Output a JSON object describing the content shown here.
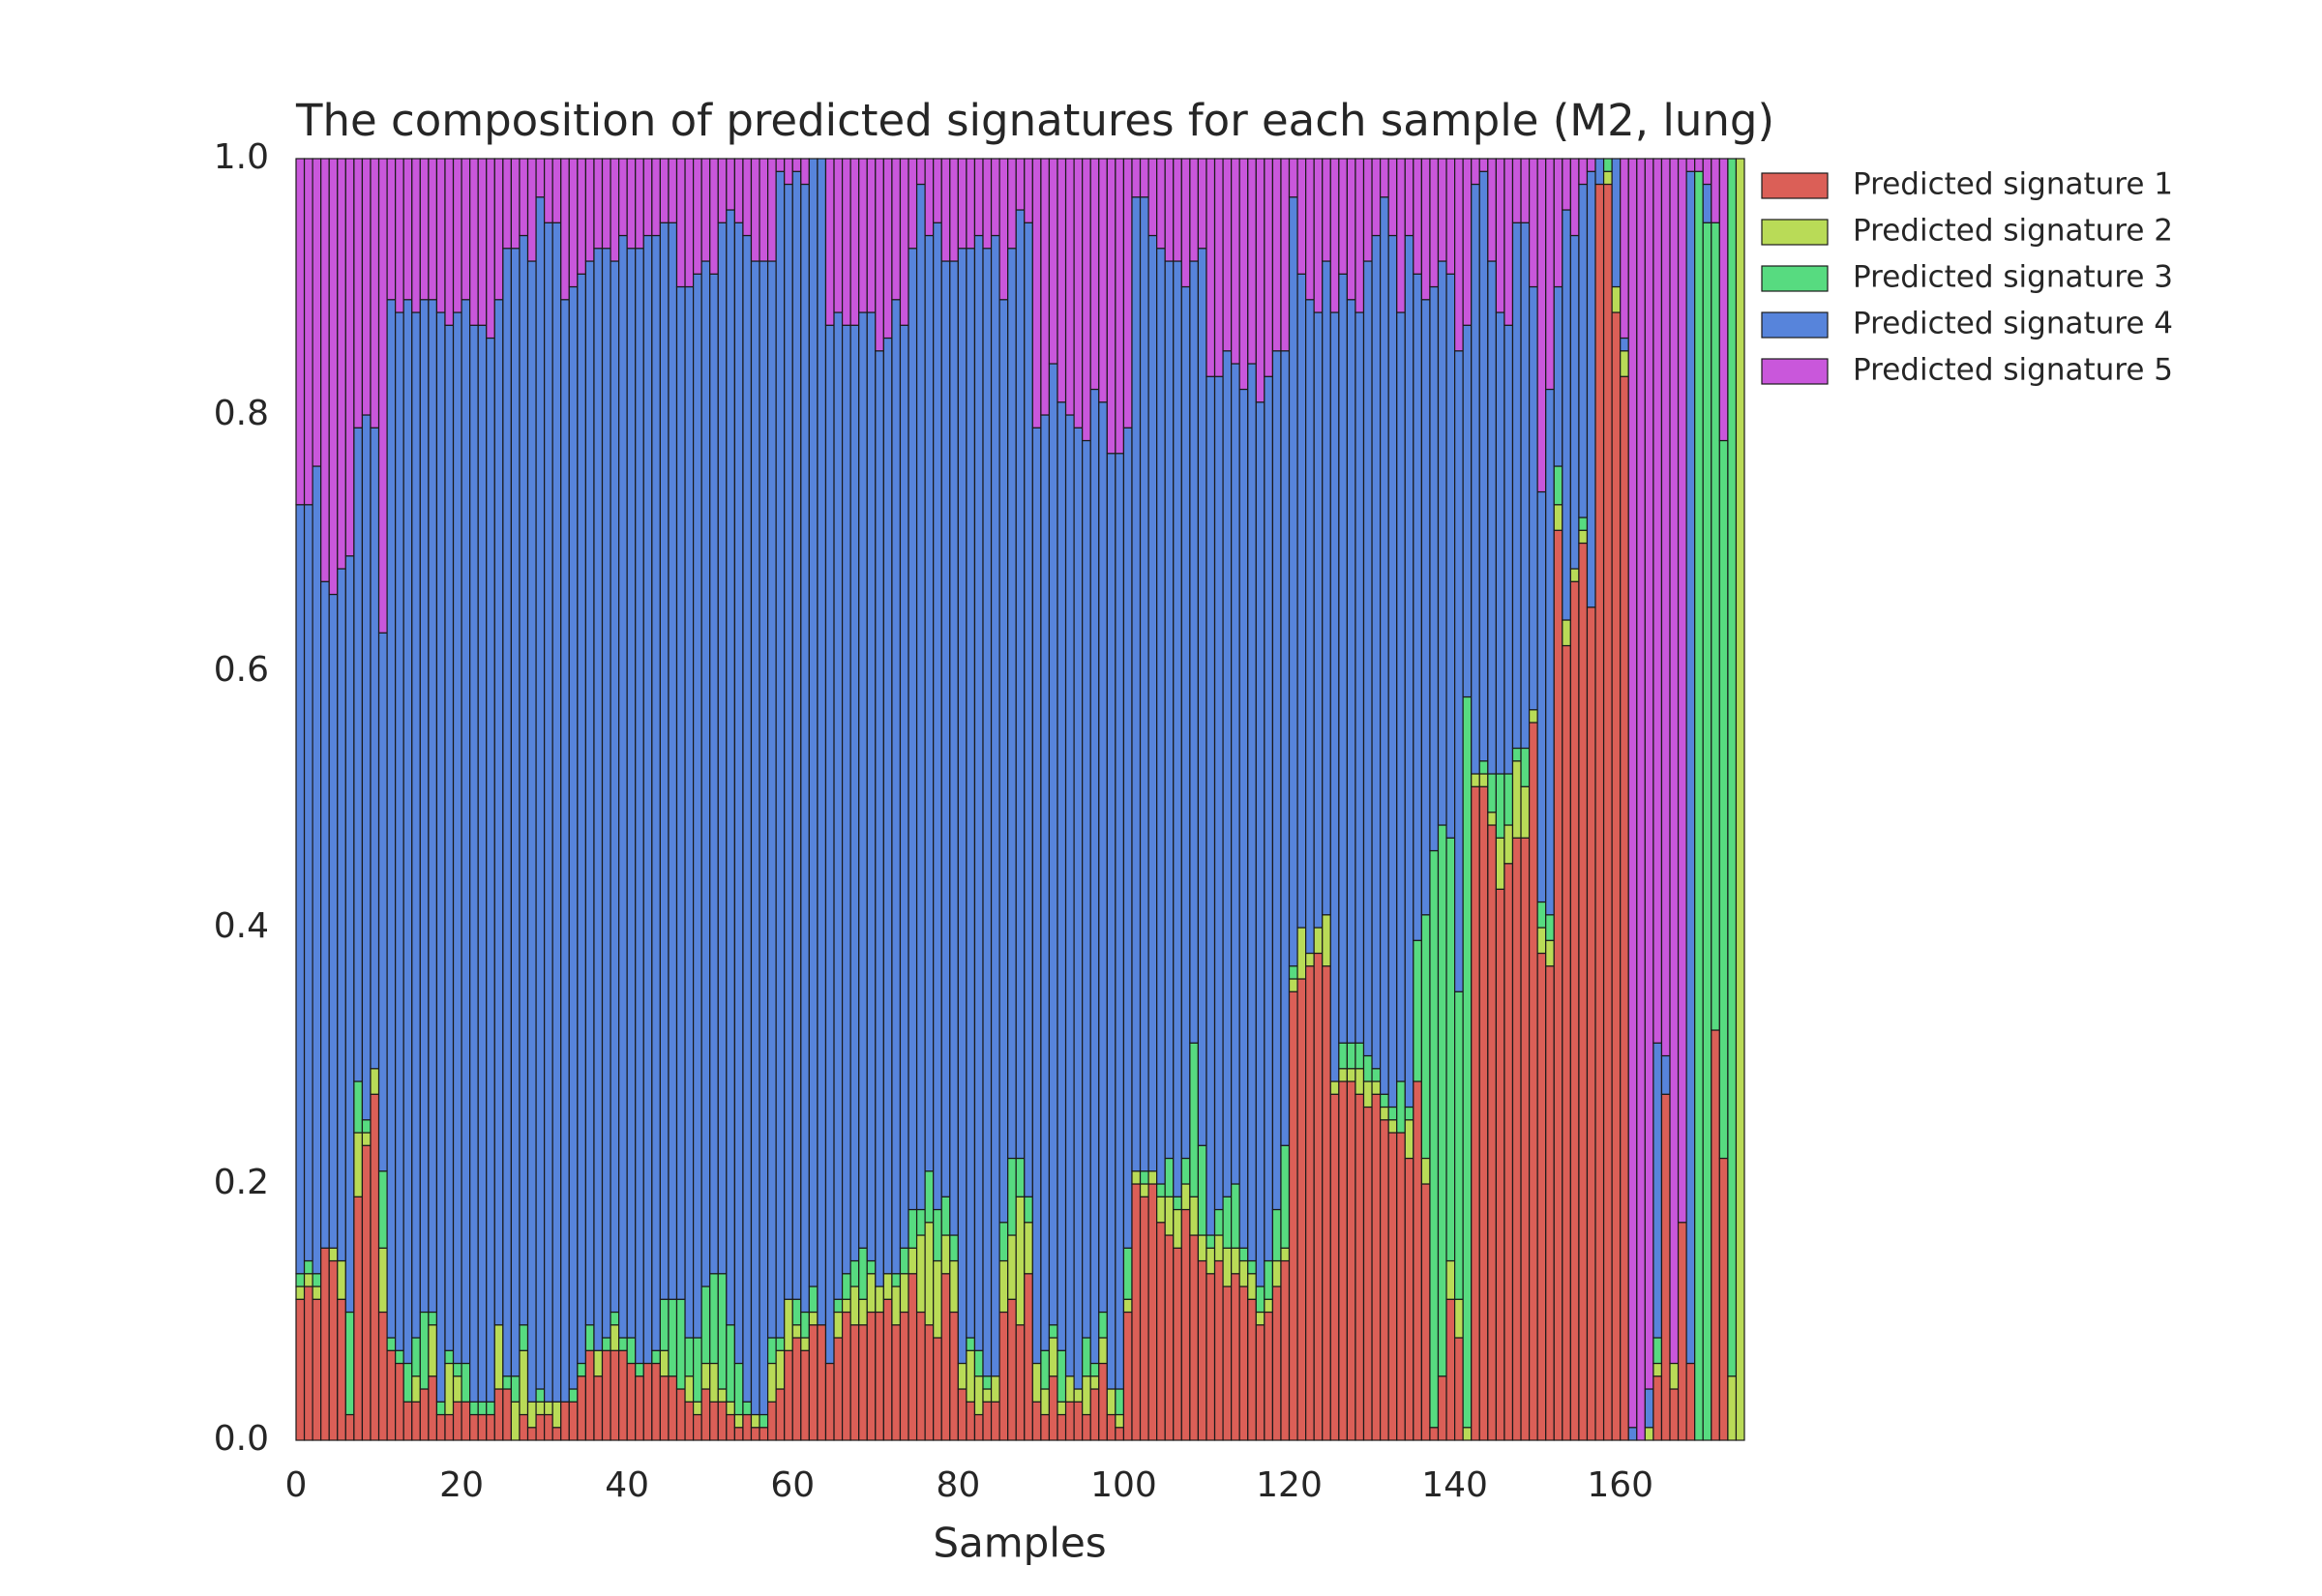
{
  "chart_data": {
    "type": "stacked_bar",
    "title": "The composition of predicted signatures for each sample (M2, lung)",
    "x_label": "Samples",
    "xlim": [
      0,
      175
    ],
    "xticks": [
      0,
      20,
      40,
      60,
      80,
      100,
      120,
      140,
      160
    ],
    "ylim": [
      0,
      1
    ],
    "yticks": [
      {
        "value": 0,
        "label": "0.0"
      },
      {
        "value": 0.2,
        "label": "0.2"
      },
      {
        "value": 0.4,
        "label": "0.4"
      },
      {
        "value": 0.6,
        "label": "0.6"
      },
      {
        "value": 0.8,
        "label": "0.8"
      },
      {
        "value": 1,
        "label": "1.0"
      }
    ],
    "grid": false,
    "legend": "outside-upper-right",
    "series": [
      {
        "name": "Predicted signature 1",
        "color": "#db5f57",
        "values": [
          0.11,
          0.12,
          0.11,
          0.15,
          0.14,
          0.11,
          0.02,
          0.19,
          0.23,
          0.27,
          0.1,
          0.07,
          0.06,
          0.03,
          0.03,
          0.04,
          0.05,
          0.02,
          0.02,
          0.03,
          0.03,
          0.02,
          0.02,
          0.02,
          0.04,
          0.04,
          0,
          0.02,
          0.01,
          0.02,
          0.02,
          0.01,
          0.03,
          0.03,
          0.05,
          0.07,
          0.05,
          0.07,
          0.07,
          0.07,
          0.06,
          0.05,
          0.06,
          0.06,
          0.05,
          0.05,
          0.04,
          0.03,
          0.02,
          0.04,
          0.03,
          0.03,
          0.02,
          0.01,
          0.02,
          0.01,
          0.01,
          0.03,
          0.04,
          0.07,
          0.08,
          0.07,
          0.09,
          0.09,
          0.06,
          0.08,
          0.1,
          0.09,
          0.09,
          0.1,
          0.1,
          0.11,
          0.09,
          0.1,
          0.13,
          0.1,
          0.09,
          0.08,
          0.13,
          0.1,
          0.04,
          0.03,
          0.02,
          0.03,
          0.03,
          0.1,
          0.11,
          0.09,
          0.13,
          0.03,
          0.02,
          0.05,
          0.02,
          0.03,
          0.03,
          0.02,
          0.04,
          0.06,
          0.02,
          0.01,
          0.1,
          0.2,
          0.19,
          0.2,
          0.17,
          0.16,
          0.15,
          0.18,
          0.16,
          0.14,
          0.13,
          0.14,
          0.12,
          0.13,
          0.12,
          0.11,
          0.09,
          0.1,
          0.12,
          0.14,
          0.35,
          0.36,
          0.37,
          0.38,
          0.37,
          0.27,
          0.28,
          0.28,
          0.27,
          0.26,
          0.27,
          0.25,
          0.24,
          0.24,
          0.22,
          0.28,
          0.2,
          0.01,
          0.05,
          0.11,
          0.08,
          0,
          0.51,
          0.51,
          0.48,
          0.43,
          0.45,
          0.47,
          0.47,
          0.56,
          0.38,
          0.37,
          0.71,
          0.62,
          0.67,
          0.7,
          0.65,
          0.98,
          0.98,
          0.88,
          0.83,
          0,
          0,
          0,
          0.05,
          0.27,
          0.04,
          0.17,
          0.06,
          0,
          0,
          0.32,
          0.22,
          0,
          0
        ]
      },
      {
        "name": "Predicted signature 2",
        "color": "#b9db57",
        "values": [
          0.01,
          0.01,
          0.01,
          0,
          0.01,
          0.03,
          0,
          0.05,
          0.01,
          0.02,
          0.05,
          0,
          0,
          0,
          0.02,
          0,
          0.04,
          0,
          0.04,
          0.02,
          0,
          0,
          0,
          0,
          0.05,
          0,
          0.03,
          0.05,
          0.02,
          0.01,
          0.01,
          0.02,
          0,
          0,
          0,
          0,
          0.02,
          0,
          0.02,
          0,
          0,
          0,
          0,
          0,
          0.02,
          0,
          0,
          0.02,
          0.01,
          0.02,
          0.03,
          0.01,
          0.01,
          0.01,
          0,
          0.01,
          0,
          0.03,
          0.03,
          0.04,
          0.01,
          0.01,
          0.01,
          0,
          0,
          0.02,
          0.01,
          0.03,
          0.02,
          0.03,
          0.02,
          0.02,
          0.03,
          0.03,
          0.02,
          0.06,
          0.08,
          0.06,
          0.03,
          0.04,
          0.02,
          0.04,
          0.03,
          0.01,
          0.02,
          0.04,
          0.05,
          0.1,
          0.04,
          0.03,
          0.02,
          0.03,
          0.01,
          0.02,
          0.01,
          0.03,
          0.01,
          0.02,
          0.02,
          0.01,
          0.01,
          0.01,
          0.01,
          0.01,
          0.02,
          0.03,
          0.03,
          0.02,
          0.03,
          0.02,
          0.02,
          0.02,
          0.03,
          0.02,
          0.02,
          0.02,
          0.01,
          0.01,
          0.02,
          0.01,
          0.01,
          0.04,
          0.01,
          0.02,
          0.04,
          0.01,
          0.01,
          0.01,
          0.02,
          0.02,
          0.01,
          0.01,
          0.01,
          0,
          0.03,
          0,
          0.02,
          0,
          0,
          0.03,
          0.03,
          0.01,
          0.01,
          0.01,
          0.01,
          0.04,
          0.03,
          0.06,
          0.04,
          0.01,
          0.02,
          0.02,
          0.02,
          0.02,
          0.01,
          0.01,
          0,
          0,
          0.01,
          0.02,
          0.02,
          0,
          0,
          0.01,
          0.01,
          0,
          0.02,
          0,
          0,
          0,
          0,
          0,
          0,
          0.05,
          1
        ]
      },
      {
        "name": "Predicted signature 3",
        "color": "#57db80",
        "values": [
          0.01,
          0.01,
          0.01,
          0,
          0,
          0,
          0.08,
          0.04,
          0.01,
          0,
          0.06,
          0.01,
          0.01,
          0.03,
          0.03,
          0.06,
          0.01,
          0.01,
          0.01,
          0.01,
          0.03,
          0.01,
          0.01,
          0.01,
          0,
          0.01,
          0.02,
          0.02,
          0,
          0.01,
          0,
          0,
          0,
          0.01,
          0.01,
          0.02,
          0,
          0.01,
          0.01,
          0.01,
          0.02,
          0.01,
          0,
          0.01,
          0.04,
          0.06,
          0.07,
          0.03,
          0.05,
          0.06,
          0.07,
          0.09,
          0.06,
          0.04,
          0.01,
          0,
          0.01,
          0.02,
          0.01,
          0,
          0.02,
          0.02,
          0.02,
          0,
          0,
          0.01,
          0.02,
          0.02,
          0.04,
          0.01,
          0,
          0,
          0.01,
          0.02,
          0.03,
          0.02,
          0.04,
          0.04,
          0.03,
          0.02,
          0,
          0.01,
          0.02,
          0.01,
          0,
          0.03,
          0.06,
          0.03,
          0.02,
          0,
          0.03,
          0.01,
          0.04,
          0,
          0,
          0.03,
          0.01,
          0.02,
          0,
          0.02,
          0.04,
          0,
          0.01,
          0,
          0.01,
          0.03,
          0.01,
          0.02,
          0.12,
          0.07,
          0.01,
          0.02,
          0.04,
          0.05,
          0.01,
          0.01,
          0.02,
          0.03,
          0.04,
          0.08,
          0.01,
          0,
          0,
          0,
          0,
          0,
          0.02,
          0.02,
          0.02,
          0.02,
          0.01,
          0.01,
          0.01,
          0.04,
          0.01,
          0.11,
          0.19,
          0.45,
          0.43,
          0.33,
          0.24,
          0.57,
          0,
          0.01,
          0.03,
          0.05,
          0.04,
          0.01,
          0.03,
          0,
          0.02,
          0.02,
          0.03,
          0,
          0,
          0.01,
          0,
          0,
          0.01,
          0,
          0,
          0,
          0,
          0,
          0.02,
          0,
          0,
          0,
          0,
          0.99,
          0.95,
          0.63,
          0.56,
          0.95,
          0
        ]
      },
      {
        "name": "Predicted signature 4",
        "color": "#5784db",
        "values": [
          0.6,
          0.59,
          0.63,
          0.52,
          0.51,
          0.54,
          0.59,
          0.51,
          0.55,
          0.5,
          0.42,
          0.81,
          0.81,
          0.83,
          0.8,
          0.79,
          0.79,
          0.85,
          0.8,
          0.82,
          0.83,
          0.84,
          0.84,
          0.83,
          0.8,
          0.88,
          0.88,
          0.85,
          0.89,
          0.93,
          0.92,
          0.92,
          0.86,
          0.86,
          0.85,
          0.83,
          0.86,
          0.85,
          0.82,
          0.86,
          0.85,
          0.87,
          0.88,
          0.87,
          0.84,
          0.84,
          0.79,
          0.82,
          0.83,
          0.8,
          0.78,
          0.82,
          0.87,
          0.89,
          0.91,
          0.9,
          0.9,
          0.84,
          0.91,
          0.87,
          0.88,
          0.88,
          0.88,
          0.91,
          0.81,
          0.77,
          0.74,
          0.73,
          0.73,
          0.74,
          0.73,
          0.73,
          0.76,
          0.72,
          0.75,
          0.8,
          0.73,
          0.77,
          0.73,
          0.76,
          0.87,
          0.85,
          0.87,
          0.88,
          0.89,
          0.72,
          0.71,
          0.74,
          0.76,
          0.73,
          0.73,
          0.75,
          0.74,
          0.75,
          0.75,
          0.7,
          0.76,
          0.71,
          0.73,
          0.73,
          0.64,
          0.76,
          0.76,
          0.73,
          0.73,
          0.7,
          0.73,
          0.68,
          0.61,
          0.7,
          0.67,
          0.65,
          0.66,
          0.64,
          0.67,
          0.7,
          0.69,
          0.69,
          0.67,
          0.62,
          0.6,
          0.51,
          0.51,
          0.48,
          0.51,
          0.6,
          0.6,
          0.58,
          0.57,
          0.62,
          0.65,
          0.7,
          0.68,
          0.6,
          0.68,
          0.52,
          0.48,
          0.44,
          0.44,
          0.44,
          0.5,
          0.29,
          0.46,
          0.46,
          0.4,
          0.36,
          0.35,
          0.41,
          0.41,
          0.33,
          0.32,
          0.41,
          0.14,
          0.32,
          0.26,
          0.26,
          0.34,
          0.02,
          0,
          0.1,
          0.01,
          0.01,
          0,
          0.03,
          0.23,
          0.03,
          0,
          0,
          0.93,
          0,
          0.03,
          0,
          0,
          0,
          0
        ]
      },
      {
        "name": "Predicted signature 5",
        "color": "#c957db",
        "values": [
          0.27,
          0.27,
          0.24,
          0.33,
          0.34,
          0.32,
          0.31,
          0.21,
          0.2,
          0.21,
          0.37,
          0.11,
          0.12,
          0.11,
          0.12,
          0.11,
          0.11,
          0.12,
          0.13,
          0.12,
          0.11,
          0.13,
          0.13,
          0.14,
          0.11,
          0.07,
          0.07,
          0.06,
          0.08,
          0.03,
          0.05,
          0.05,
          0.11,
          0.1,
          0.09,
          0.08,
          0.07,
          0.07,
          0.08,
          0.06,
          0.07,
          0.07,
          0.06,
          0.06,
          0.05,
          0.05,
          0.1,
          0.1,
          0.09,
          0.08,
          0.09,
          0.05,
          0.04,
          0.05,
          0.06,
          0.08,
          0.08,
          0.08,
          0.01,
          0.02,
          0.01,
          0.02,
          0,
          0,
          0.13,
          0.12,
          0.13,
          0.13,
          0.12,
          0.12,
          0.15,
          0.14,
          0.11,
          0.13,
          0.07,
          0.02,
          0.06,
          0.05,
          0.08,
          0.08,
          0.07,
          0.07,
          0.06,
          0.07,
          0.06,
          0.11,
          0.07,
          0.04,
          0.05,
          0.21,
          0.2,
          0.16,
          0.19,
          0.2,
          0.21,
          0.22,
          0.18,
          0.19,
          0.23,
          0.23,
          0.21,
          0.03,
          0.03,
          0.06,
          0.07,
          0.08,
          0.08,
          0.1,
          0.08,
          0.07,
          0.17,
          0.17,
          0.15,
          0.16,
          0.18,
          0.16,
          0.19,
          0.17,
          0.15,
          0.15,
          0.03,
          0.09,
          0.11,
          0.12,
          0.08,
          0.12,
          0.09,
          0.11,
          0.12,
          0.08,
          0.06,
          0.03,
          0.06,
          0.12,
          0.06,
          0.09,
          0.11,
          0.1,
          0.08,
          0.09,
          0.15,
          0.13,
          0.02,
          0.01,
          0.08,
          0.12,
          0.13,
          0.05,
          0.05,
          0.1,
          0.26,
          0.18,
          0.1,
          0.04,
          0.06,
          0.02,
          0.01,
          0,
          0,
          0,
          0.14,
          0.99,
          1,
          0.96,
          0.69,
          0.7,
          0.94,
          0.83,
          0.01,
          0.01,
          0.02,
          0.05,
          0.22,
          0,
          0
        ]
      }
    ]
  }
}
